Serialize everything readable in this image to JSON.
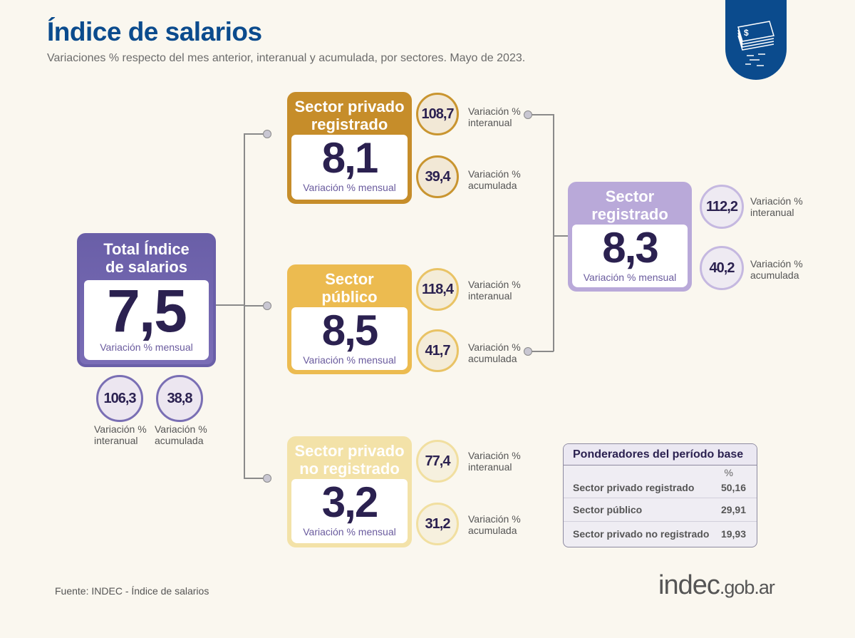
{
  "header": {
    "title": "Índice de salarios",
    "subtitle": "Variaciones % respecto del mes anterior, interanual y acumulada, por sectores. Mayo de 2023.",
    "icon": "money-stack-icon"
  },
  "total": {
    "title_1": "Total Índice",
    "title_2": "de salarios",
    "value": "7,5",
    "label": "Variación % mensual",
    "interanual": "106,3",
    "acumulada": "38,8",
    "lab_var": "Variación %",
    "lab_inter": "interanual",
    "lab_acum": "acumulada",
    "color": "#6a5fa8"
  },
  "privado_registrado": {
    "title_1": "Sector privado",
    "title_2": "registrado",
    "value": "8,1",
    "label": "Variación % mensual",
    "interanual": "108,7",
    "acumulada": "39,4",
    "color": "#c68d2a"
  },
  "publico": {
    "title_1": "Sector",
    "title_2": "público",
    "value": "8,5",
    "label": "Variación % mensual",
    "interanual": "118,4",
    "acumulada": "41,7",
    "color": "#ecbb50"
  },
  "no_registrado": {
    "title_1": "Sector privado",
    "title_2": "no registrado",
    "value": "3,2",
    "label": "Variación % mensual",
    "interanual": "77,4",
    "acumulada": "31,2",
    "color": "#f3e2a8"
  },
  "registrado": {
    "title_1": "Sector",
    "title_2": "registrado",
    "value": "8,3",
    "label": "Variación % mensual",
    "interanual": "112,2",
    "acumulada": "40,2",
    "color": "#b9a9d9"
  },
  "labels": {
    "var": "Variación %",
    "inter": "interanual",
    "acum": "acumulada"
  },
  "table": {
    "title": "Ponderadores del período base",
    "unit": "%",
    "rows": [
      {
        "name": "Sector privado registrado",
        "value": "50,16"
      },
      {
        "name": "Sector público",
        "value": "29,91"
      },
      {
        "name": "Sector privado no registrado",
        "value": "19,93"
      }
    ]
  },
  "footer": {
    "source": "Fuente: INDEC - Índice de salarios",
    "logo_main": "indec",
    "logo_suffix": ".gob.ar"
  }
}
